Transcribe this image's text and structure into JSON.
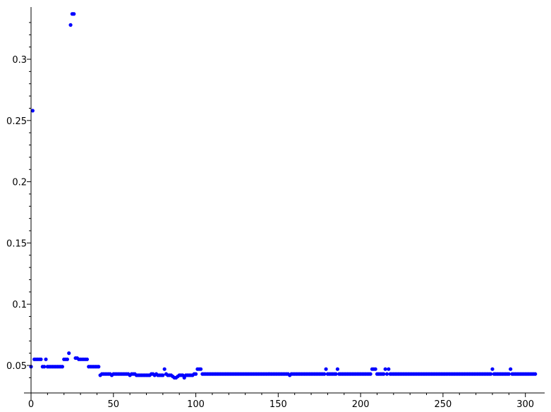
{
  "chart_data": {
    "type": "scatter",
    "title": "",
    "xlabel": "",
    "ylabel": "",
    "xlim": [
      0,
      310
    ],
    "ylim": [
      0.0285,
      0.342
    ],
    "grid": false,
    "marker_color": "#0000ff",
    "axis_color": "#000000",
    "x_ticks": [
      {
        "value": 0,
        "label": "0"
      },
      {
        "value": 50,
        "label": "50"
      },
      {
        "value": 100,
        "label": "100"
      },
      {
        "value": 150,
        "label": "150"
      },
      {
        "value": 200,
        "label": "200"
      },
      {
        "value": 250,
        "label": "250"
      },
      {
        "value": 300,
        "label": "300"
      }
    ],
    "y_ticks": [
      {
        "value": 0.05,
        "label": "0.05"
      },
      {
        "value": 0.1,
        "label": "0.1"
      },
      {
        "value": 0.15,
        "label": "0.15"
      },
      {
        "value": 0.2,
        "label": "0.2"
      },
      {
        "value": 0.25,
        "label": "0.25"
      },
      {
        "value": 0.3,
        "label": "0.3"
      }
    ],
    "series": [
      {
        "name": "points",
        "x_start": 0,
        "x_step": 1,
        "y": [
          0.049,
          0.258,
          0.055,
          0.055,
          0.055,
          0.055,
          0.055,
          0.049,
          0.049,
          0.055,
          0.049,
          0.049,
          0.049,
          0.049,
          0.049,
          0.049,
          0.049,
          0.049,
          0.049,
          0.049,
          0.055,
          0.055,
          0.055,
          0.06,
          0.328,
          0.337,
          0.337,
          0.056,
          0.056,
          0.055,
          0.055,
          0.055,
          0.055,
          0.055,
          0.055,
          0.049,
          0.049,
          0.049,
          0.049,
          0.049,
          0.049,
          0.049,
          0.042,
          0.043,
          0.043,
          0.043,
          0.043,
          0.043,
          0.043,
          0.042,
          0.043,
          0.043,
          0.043,
          0.043,
          0.043,
          0.043,
          0.043,
          0.043,
          0.043,
          0.043,
          0.042,
          0.043,
          0.043,
          0.043,
          0.042,
          0.042,
          0.042,
          0.042,
          0.042,
          0.042,
          0.042,
          0.042,
          0.042,
          0.043,
          0.043,
          0.042,
          0.043,
          0.042,
          0.042,
          0.042,
          0.042,
          0.047,
          0.043,
          0.042,
          0.042,
          0.042,
          0.041,
          0.04,
          0.04,
          0.041,
          0.042,
          0.042,
          0.042,
          0.04,
          0.042,
          0.042,
          0.042,
          0.042,
          0.042,
          0.043,
          0.043,
          0.047,
          0.047,
          0.047,
          0.043,
          0.043,
          0.043,
          0.043,
          0.043,
          0.043,
          0.043,
          0.043,
          0.043,
          0.043,
          0.043,
          0.043,
          0.043,
          0.043,
          0.043,
          0.043,
          0.043,
          0.043,
          0.043,
          0.043,
          0.043,
          0.043,
          0.043,
          0.043,
          0.043,
          0.043,
          0.043,
          0.043,
          0.043,
          0.043,
          0.043,
          0.043,
          0.043,
          0.043,
          0.043,
          0.043,
          0.043,
          0.043,
          0.043,
          0.043,
          0.043,
          0.043,
          0.043,
          0.043,
          0.043,
          0.043,
          0.043,
          0.043,
          0.043,
          0.043,
          0.043,
          0.043,
          0.043,
          0.042,
          0.043,
          0.043,
          0.043,
          0.043,
          0.043,
          0.043,
          0.043,
          0.043,
          0.043,
          0.043,
          0.043,
          0.043,
          0.043,
          0.043,
          0.043,
          0.043,
          0.043,
          0.043,
          0.043,
          0.043,
          0.043,
          0.047,
          0.043,
          0.043,
          0.043,
          0.043,
          0.043,
          0.043,
          0.047,
          0.043,
          0.043,
          0.043,
          0.043,
          0.043,
          0.043,
          0.043,
          0.043,
          0.043,
          0.043,
          0.043,
          0.043,
          0.043,
          0.043,
          0.043,
          0.043,
          0.043,
          0.043,
          0.043,
          0.043,
          0.047,
          0.047,
          0.047,
          0.043,
          0.043,
          0.043,
          0.043,
          0.043,
          0.047,
          0.043,
          0.047,
          0.043,
          0.043,
          0.043,
          0.043,
          0.043,
          0.043,
          0.043,
          0.043,
          0.043,
          0.043,
          0.043,
          0.043,
          0.043,
          0.043,
          0.043,
          0.043,
          0.043,
          0.043,
          0.043,
          0.043,
          0.043,
          0.043,
          0.043,
          0.043,
          0.043,
          0.043,
          0.043,
          0.043,
          0.043,
          0.043,
          0.043,
          0.043,
          0.043,
          0.043,
          0.043,
          0.043,
          0.043,
          0.043,
          0.043,
          0.043,
          0.043,
          0.043,
          0.043,
          0.043,
          0.043,
          0.043,
          0.043,
          0.043,
          0.043,
          0.043,
          0.043,
          0.043,
          0.043,
          0.043,
          0.043,
          0.043,
          0.043,
          0.043,
          0.043,
          0.043,
          0.043,
          0.043,
          0.047,
          0.043,
          0.043,
          0.043,
          0.043,
          0.043,
          0.043,
          0.043,
          0.043,
          0.043,
          0.043,
          0.047,
          0.043,
          0.043,
          0.043,
          0.043,
          0.043,
          0.043,
          0.043,
          0.043,
          0.043,
          0.043,
          0.043,
          0.043,
          0.043,
          0.043,
          0.043
        ]
      }
    ]
  }
}
